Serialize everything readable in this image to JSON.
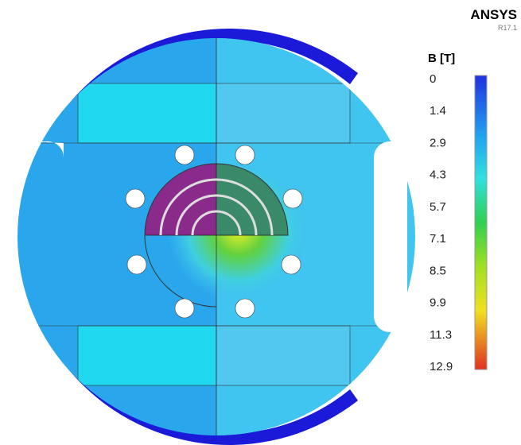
{
  "header": {
    "brand": "ANSYS",
    "version": "R17.1"
  },
  "legend": {
    "title": "B [T]",
    "labels": [
      0,
      1.4,
      2.9,
      4.3,
      5.7,
      7.1,
      8.5,
      9.9,
      11.3,
      12.9
    ]
  }
}
